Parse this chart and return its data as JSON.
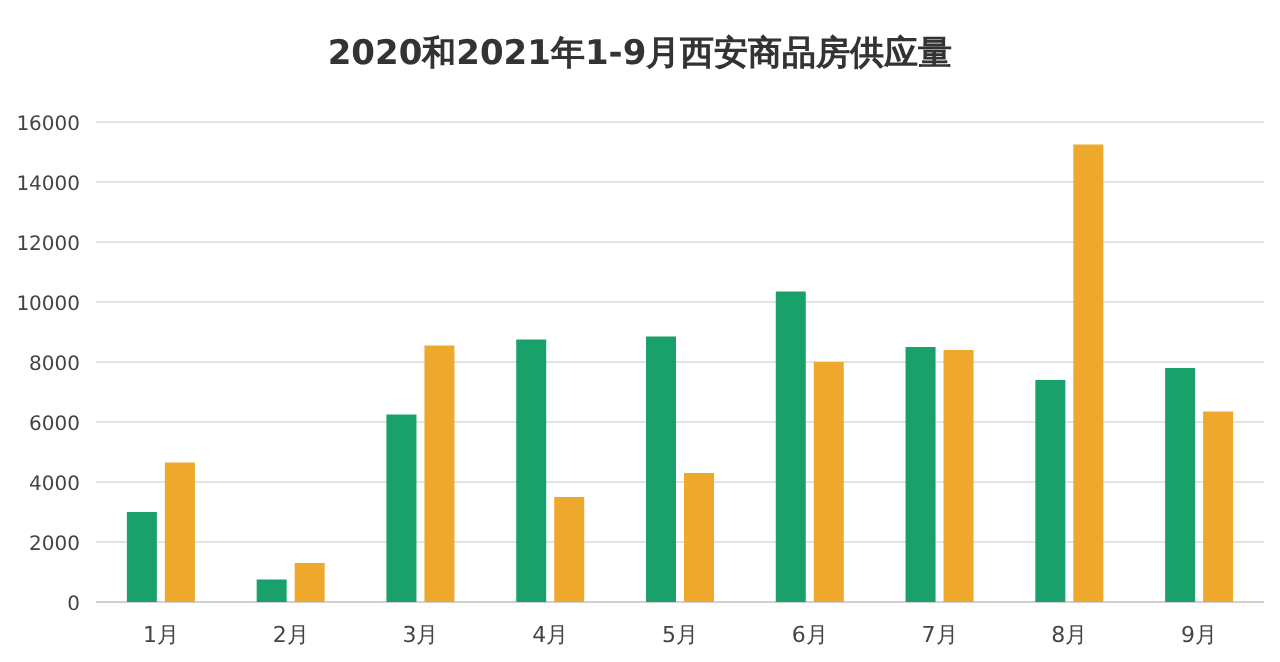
{
  "chart_data": {
    "type": "bar",
    "title": "2020和2021年1-9月西安商品房供应量",
    "categories": [
      "1月",
      "2月",
      "3月",
      "4月",
      "5月",
      "6月",
      "7月",
      "8月",
      "9月"
    ],
    "series": [
      {
        "color": "#1aa06a",
        "values": [
          3000,
          750,
          6250,
          8750,
          8850,
          10350,
          8500,
          7400,
          7800
        ]
      },
      {
        "color": "#eea82c",
        "values": [
          4650,
          1300,
          8550,
          3500,
          4300,
          8000,
          8400,
          15250,
          6350
        ]
      }
    ],
    "ylim": [
      0,
      16000
    ],
    "yticks": [
      0,
      2000,
      4000,
      6000,
      8000,
      10000,
      12000,
      14000,
      16000
    ],
    "grid": "y"
  }
}
